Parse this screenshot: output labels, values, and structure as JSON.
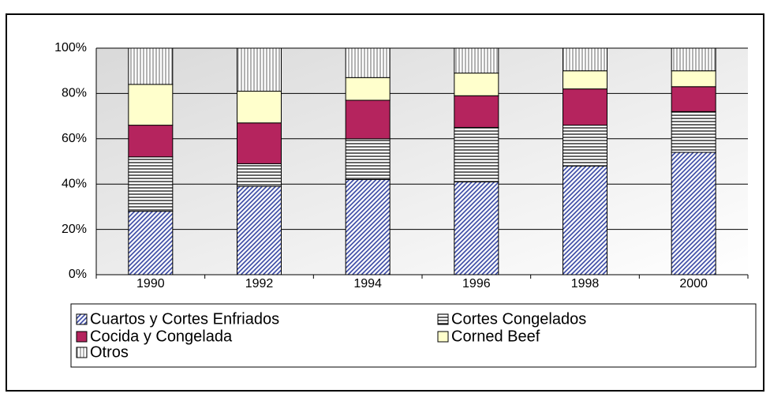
{
  "chart_data": {
    "type": "bar",
    "stacked": true,
    "categories": [
      "1990",
      "1992",
      "1994",
      "1996",
      "1998",
      "2000"
    ],
    "series": [
      {
        "name": "Cuartos y Cortes Enfriados",
        "color": "#2f3f9f",
        "hatch": "diagonal",
        "values": [
          28,
          39,
          42,
          41,
          48,
          54
        ]
      },
      {
        "name": "Cortes Congelados",
        "color": "#000000",
        "hatch": "horizontal",
        "values": [
          24,
          10,
          18,
          24,
          18,
          18
        ]
      },
      {
        "name": "Cocida y Congelada",
        "color": "#b5245e",
        "hatch": "none",
        "values": [
          14,
          18,
          17,
          14,
          16,
          11
        ]
      },
      {
        "name": "Corned Beef",
        "color": "#ffffcc",
        "hatch": "none",
        "values": [
          18,
          14,
          10,
          10,
          8,
          7
        ]
      },
      {
        "name": "Otros",
        "color": "#808080",
        "hatch": "vertical",
        "values": [
          16,
          19,
          13,
          11,
          10,
          10
        ]
      }
    ],
    "ylim": [
      0,
      100
    ],
    "yticks": [
      {
        "value": 0,
        "label": "0%"
      },
      {
        "value": 20,
        "label": "20%"
      },
      {
        "value": 40,
        "label": "40%"
      },
      {
        "value": 60,
        "label": "60%"
      },
      {
        "value": 80,
        "label": "80%"
      },
      {
        "value": 100,
        "label": "100%"
      }
    ],
    "grid": true,
    "legend": "bottom"
  }
}
